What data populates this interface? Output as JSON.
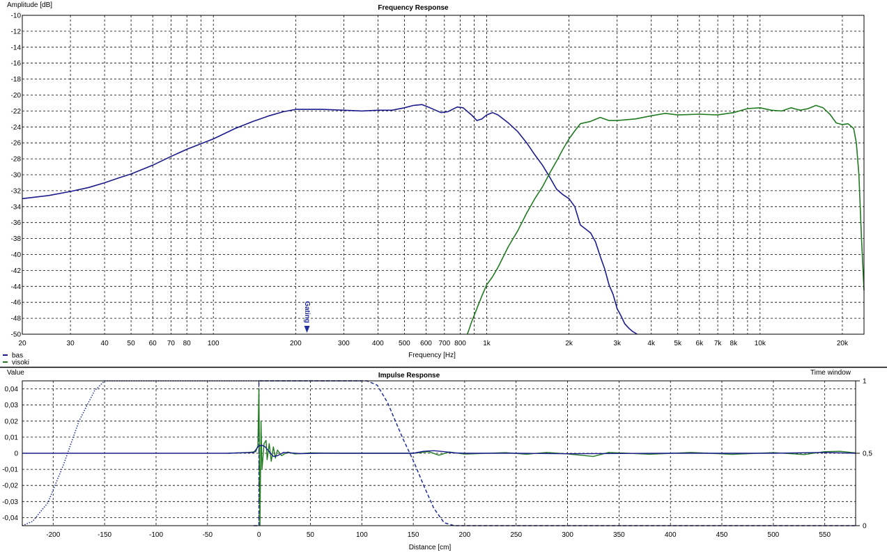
{
  "colors": {
    "bas": "#1a1a8c",
    "visoki": "#207a20",
    "window": "#1f2a9c"
  },
  "chart_data": [
    {
      "type": "line",
      "title": "Frequency Response",
      "ylabel": "Amplitude [dB]",
      "xlabel": "Frequency [Hz]",
      "xscale": "log",
      "xlim": [
        20,
        24000
      ],
      "ylim": [
        -50,
        -10
      ],
      "grid": true,
      "legend": "bottom-left",
      "x_ticks": [
        {
          "v": 20,
          "t": "20"
        },
        {
          "v": 30,
          "t": "30"
        },
        {
          "v": 40,
          "t": "40"
        },
        {
          "v": 50,
          "t": "50"
        },
        {
          "v": 60,
          "t": "60"
        },
        {
          "v": 70,
          "t": "70"
        },
        {
          "v": 80,
          "t": "80"
        },
        {
          "v": 100,
          "t": "100"
        },
        {
          "v": 200,
          "t": "200"
        },
        {
          "v": 300,
          "t": "300"
        },
        {
          "v": 400,
          "t": "400"
        },
        {
          "v": 500,
          "t": "500"
        },
        {
          "v": 600,
          "t": "600"
        },
        {
          "v": 700,
          "t": "700"
        },
        {
          "v": 800,
          "t": "800"
        },
        {
          "v": 1000,
          "t": "1k"
        },
        {
          "v": 2000,
          "t": "2k"
        },
        {
          "v": 3000,
          "t": "3k"
        },
        {
          "v": 4000,
          "t": "4k"
        },
        {
          "v": 5000,
          "t": "5k"
        },
        {
          "v": 6000,
          "t": "6k"
        },
        {
          "v": 7000,
          "t": "7k"
        },
        {
          "v": 8000,
          "t": "8k"
        },
        {
          "v": 10000,
          "t": "10k"
        },
        {
          "v": 20000,
          "t": "20k"
        }
      ],
      "x_gridlines": [
        20,
        30,
        40,
        50,
        60,
        70,
        80,
        90,
        100,
        200,
        300,
        400,
        500,
        600,
        700,
        800,
        900,
        1000,
        2000,
        3000,
        4000,
        5000,
        6000,
        7000,
        8000,
        9000,
        10000,
        20000
      ],
      "y_ticks": [
        -10,
        -12,
        -14,
        -16,
        -18,
        -20,
        -22,
        -24,
        -26,
        -28,
        -30,
        -32,
        -34,
        -36,
        -38,
        -40,
        -42,
        -44,
        -46,
        -48,
        -50
      ],
      "annotations": [
        {
          "text": "Gating",
          "x": 220
        }
      ],
      "series": [
        {
          "name": "bas",
          "points": [
            [
              20,
              -33.0
            ],
            [
              25,
              -32.6
            ],
            [
              30,
              -32.1
            ],
            [
              35,
              -31.6
            ],
            [
              40,
              -31.0
            ],
            [
              45,
              -30.4
            ],
            [
              50,
              -29.9
            ],
            [
              60,
              -28.8
            ],
            [
              70,
              -27.7
            ],
            [
              80,
              -26.8
            ],
            [
              100,
              -25.5
            ],
            [
              120,
              -24.2
            ],
            [
              140,
              -23.3
            ],
            [
              160,
              -22.6
            ],
            [
              180,
              -22.1
            ],
            [
              200,
              -21.8
            ],
            [
              250,
              -21.8
            ],
            [
              300,
              -21.9
            ],
            [
              350,
              -22.0
            ],
            [
              400,
              -21.9
            ],
            [
              450,
              -21.9
            ],
            [
              500,
              -21.6
            ],
            [
              540,
              -21.3
            ],
            [
              580,
              -21.2
            ],
            [
              620,
              -21.6
            ],
            [
              680,
              -22.2
            ],
            [
              720,
              -22.1
            ],
            [
              780,
              -21.5
            ],
            [
              820,
              -21.6
            ],
            [
              880,
              -22.5
            ],
            [
              920,
              -23.2
            ],
            [
              960,
              -23.0
            ],
            [
              1000,
              -22.5
            ],
            [
              1050,
              -22.2
            ],
            [
              1100,
              -22.5
            ],
            [
              1200,
              -23.5
            ],
            [
              1300,
              -24.6
            ],
            [
              1400,
              -26.0
            ],
            [
              1500,
              -27.5
            ],
            [
              1600,
              -28.8
            ],
            [
              1700,
              -30.3
            ],
            [
              1800,
              -31.8
            ],
            [
              1900,
              -32.5
            ],
            [
              2000,
              -33.0
            ],
            [
              2100,
              -34.0
            ],
            [
              2200,
              -36.3
            ],
            [
              2300,
              -36.8
            ],
            [
              2400,
              -37.3
            ],
            [
              2500,
              -38.4
            ],
            [
              2600,
              -40.2
            ],
            [
              2700,
              -41.8
            ],
            [
              2800,
              -43.8
            ],
            [
              2900,
              -45.0
            ],
            [
              3000,
              -46.8
            ],
            [
              3100,
              -47.7
            ],
            [
              3200,
              -48.7
            ],
            [
              3300,
              -49.2
            ],
            [
              3400,
              -49.6
            ],
            [
              3550,
              -50.0
            ]
          ]
        },
        {
          "name": "visoki",
          "points": [
            [
              850,
              -50.0
            ],
            [
              880,
              -48.5
            ],
            [
              920,
              -46.8
            ],
            [
              960,
              -45.2
            ],
            [
              1000,
              -43.8
            ],
            [
              1050,
              -42.8
            ],
            [
              1100,
              -41.6
            ],
            [
              1200,
              -39.0
            ],
            [
              1300,
              -37.0
            ],
            [
              1400,
              -34.8
            ],
            [
              1500,
              -33.0
            ],
            [
              1600,
              -31.5
            ],
            [
              1700,
              -29.8
            ],
            [
              1800,
              -28.3
            ],
            [
              1900,
              -26.8
            ],
            [
              2000,
              -25.5
            ],
            [
              2100,
              -24.5
            ],
            [
              2200,
              -23.6
            ],
            [
              2400,
              -23.3
            ],
            [
              2600,
              -22.8
            ],
            [
              2800,
              -23.2
            ],
            [
              3000,
              -23.2
            ],
            [
              3500,
              -23.0
            ],
            [
              4000,
              -22.6
            ],
            [
              4500,
              -22.3
            ],
            [
              5000,
              -22.5
            ],
            [
              6000,
              -22.4
            ],
            [
              7000,
              -22.5
            ],
            [
              8000,
              -22.2
            ],
            [
              9000,
              -21.7
            ],
            [
              10000,
              -21.6
            ],
            [
              11000,
              -21.9
            ],
            [
              12000,
              -22.0
            ],
            [
              13000,
              -21.6
            ],
            [
              14000,
              -21.9
            ],
            [
              15000,
              -21.7
            ],
            [
              16000,
              -21.3
            ],
            [
              17000,
              -21.6
            ],
            [
              18000,
              -22.4
            ],
            [
              19000,
              -23.5
            ],
            [
              20000,
              -23.7
            ],
            [
              21000,
              -23.6
            ],
            [
              22000,
              -24.2
            ],
            [
              22500,
              -26.0
            ],
            [
              23000,
              -30.0
            ],
            [
              23500,
              -38.0
            ],
            [
              24000,
              -44.5
            ]
          ]
        }
      ]
    },
    {
      "type": "line",
      "title": "Impulse Response",
      "ylabel": "Value",
      "y2label": "Time window",
      "xlabel": "Distance [cm]",
      "xlim": [
        -230,
        580
      ],
      "ylim": [
        -0.045,
        0.045
      ],
      "y2lim": [
        0,
        1
      ],
      "grid": true,
      "x_ticks": [
        -200,
        -150,
        -100,
        -50,
        0,
        50,
        100,
        150,
        200,
        250,
        300,
        350,
        400,
        450,
        500,
        550
      ],
      "y_ticks": [
        {
          "v": 0.04,
          "t": "0,04"
        },
        {
          "v": 0.03,
          "t": "0,03"
        },
        {
          "v": 0.02,
          "t": "0,02"
        },
        {
          "v": 0.01,
          "t": "0,01"
        },
        {
          "v": 0,
          "t": "0"
        },
        {
          "v": -0.01,
          "t": "-0,01"
        },
        {
          "v": -0.02,
          "t": "-0,02"
        },
        {
          "v": -0.03,
          "t": "-0,03"
        },
        {
          "v": -0.04,
          "t": "-0,04"
        }
      ],
      "y2_ticks": [
        {
          "v": 1,
          "t": "1"
        },
        {
          "v": 0.5,
          "t": "0,5"
        },
        {
          "v": 0,
          "t": "0"
        }
      ],
      "window_left": [
        [
          -230,
          0.0
        ],
        [
          -220,
          0.03
        ],
        [
          -205,
          0.16
        ],
        [
          -190,
          0.42
        ],
        [
          -175,
          0.72
        ],
        [
          -160,
          0.93
        ],
        [
          -150,
          1.0
        ],
        [
          100,
          1.0
        ]
      ],
      "window_right": [
        [
          -5,
          0.0
        ],
        [
          0,
          0.0
        ],
        [
          0,
          1.0
        ],
        [
          105,
          1.0
        ],
        [
          115,
          0.97
        ],
        [
          125,
          0.85
        ],
        [
          140,
          0.6
        ],
        [
          150,
          0.45
        ],
        [
          160,
          0.28
        ],
        [
          170,
          0.12
        ],
        [
          180,
          0.02
        ],
        [
          190,
          0.0
        ],
        [
          580,
          0.0
        ]
      ],
      "series": [
        {
          "name": "bas",
          "points": [
            [
              -230,
              0
            ],
            [
              -30,
              0
            ],
            [
              -5,
              0.0005
            ],
            [
              -2,
              0.003
            ],
            [
              0,
              0.0045
            ],
            [
              3,
              0.005
            ],
            [
              6,
              0.004
            ],
            [
              10,
              0.001
            ],
            [
              14,
              -0.002
            ],
            [
              18,
              -0.0015
            ],
            [
              24,
              0.0005
            ],
            [
              30,
              0.0003
            ],
            [
              40,
              -0.0002
            ],
            [
              60,
              0
            ],
            [
              120,
              0
            ],
            [
              150,
              0
            ],
            [
              160,
              0.0012
            ],
            [
              170,
              0.0016
            ],
            [
              180,
              0.001
            ],
            [
              190,
              0.0002
            ],
            [
              200,
              0
            ],
            [
              250,
              0
            ],
            [
              300,
              -0.0003
            ],
            [
              400,
              0
            ],
            [
              500,
              0
            ],
            [
              550,
              0.0005
            ],
            [
              580,
              0
            ]
          ]
        },
        {
          "name": "visoki",
          "points": [
            [
              -30,
              0
            ],
            [
              -10,
              0.0005
            ],
            [
              -3,
              0.001
            ],
            [
              -1,
              0.005
            ],
            [
              0,
              0.04
            ],
            [
              1,
              -0.045
            ],
            [
              2,
              0.02
            ],
            [
              3,
              -0.01
            ],
            [
              5,
              0.006
            ],
            [
              7,
              0.008
            ],
            [
              8,
              -0.004
            ],
            [
              10,
              0.006
            ],
            [
              12,
              -0.005
            ],
            [
              14,
              0.004
            ],
            [
              16,
              -0.003
            ],
            [
              18,
              0.002
            ],
            [
              22,
              -0.0015
            ],
            [
              28,
              0.0008
            ],
            [
              35,
              -0.0004
            ],
            [
              50,
              0.0002
            ],
            [
              80,
              0
            ],
            [
              150,
              0
            ],
            [
              165,
              0.001
            ],
            [
              175,
              -0.0012
            ],
            [
              185,
              0.0008
            ],
            [
              200,
              -0.0005
            ],
            [
              240,
              0.0004
            ],
            [
              260,
              -0.0006
            ],
            [
              280,
              0.0005
            ],
            [
              300,
              -0.0004
            ],
            [
              325,
              -0.002
            ],
            [
              340,
              0.0005
            ],
            [
              380,
              -0.0006
            ],
            [
              420,
              0.0005
            ],
            [
              460,
              -0.0007
            ],
            [
              500,
              0.0004
            ],
            [
              530,
              -0.0008
            ],
            [
              550,
              0.001
            ],
            [
              565,
              0.0012
            ],
            [
              580,
              0.0002
            ]
          ]
        }
      ]
    }
  ]
}
